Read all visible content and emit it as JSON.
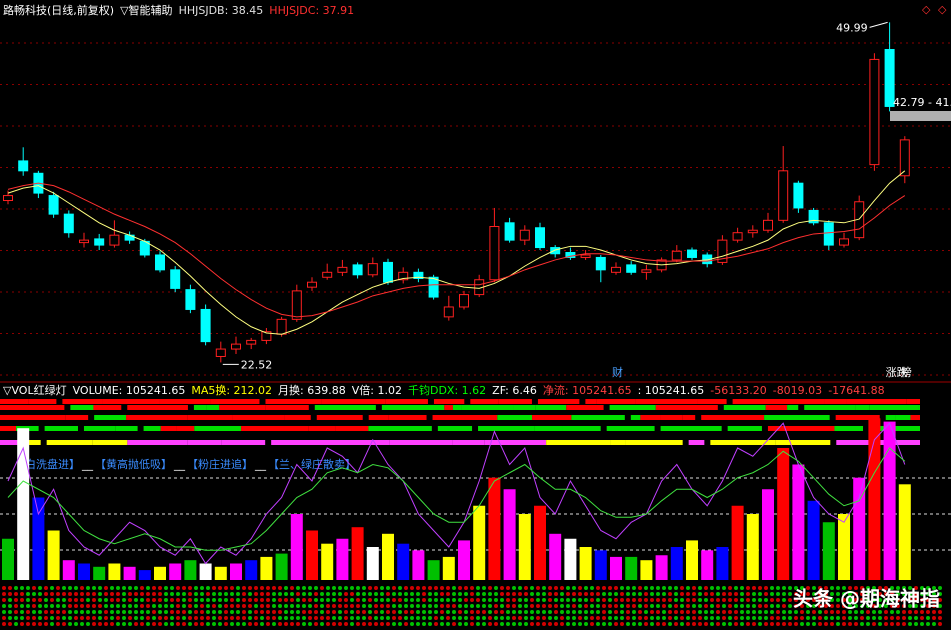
{
  "chart_data": [
    {
      "type": "candlestick",
      "header": [
        {
          "text": "路畅科技(日线,前复权)",
          "color": "#ffffff"
        },
        {
          "text": "▽智能辅助",
          "color": "#ffffff"
        },
        {
          "text": "HHJSJDB: 38.45",
          "color": "#e0e0e0"
        },
        {
          "text": "HHJSJDC: 37.91",
          "color": "#ff3030"
        }
      ],
      "ylim": [
        21.1,
        51.8
      ],
      "up_color": "#ff2020",
      "down_color": "#00ffff",
      "ohlc": [
        [
          35.6,
          36.4,
          35.3,
          36.0
        ],
        [
          38.8,
          39.9,
          37.6,
          38.0
        ],
        [
          37.8,
          38.0,
          35.8,
          36.2
        ],
        [
          36.0,
          36.3,
          34.2,
          34.5
        ],
        [
          34.5,
          34.8,
          32.6,
          33.0
        ],
        [
          32.2,
          33.0,
          31.8,
          32.4
        ],
        [
          32.5,
          32.9,
          31.6,
          32.0
        ],
        [
          32.0,
          34.0,
          31.8,
          32.8
        ],
        [
          32.8,
          33.1,
          32.1,
          32.4
        ],
        [
          32.3,
          32.5,
          31.0,
          31.2
        ],
        [
          31.2,
          31.5,
          29.8,
          30.0
        ],
        [
          30.0,
          30.3,
          28.2,
          28.5
        ],
        [
          28.4,
          28.8,
          26.5,
          26.8
        ],
        [
          26.8,
          27.2,
          23.9,
          24.2
        ],
        [
          23.0,
          24.2,
          22.52,
          23.6
        ],
        [
          23.6,
          24.6,
          23.2,
          24.0
        ],
        [
          24.0,
          24.5,
          23.6,
          24.3
        ],
        [
          24.3,
          25.3,
          24.0,
          25.0
        ],
        [
          24.8,
          26.2,
          24.6,
          26.0
        ],
        [
          26.0,
          28.8,
          25.8,
          28.3
        ],
        [
          28.6,
          29.4,
          28.3,
          29.0
        ],
        [
          29.4,
          30.5,
          29.2,
          29.8
        ],
        [
          29.8,
          30.8,
          29.5,
          30.2
        ],
        [
          30.4,
          30.6,
          29.3,
          29.6
        ],
        [
          29.6,
          31.0,
          29.4,
          30.5
        ],
        [
          30.6,
          30.9,
          28.8,
          29.0
        ],
        [
          29.2,
          30.2,
          28.9,
          29.8
        ],
        [
          29.8,
          30.1,
          29.0,
          29.3
        ],
        [
          29.4,
          29.6,
          27.6,
          27.8
        ],
        [
          26.2,
          27.9,
          25.9,
          27.0
        ],
        [
          27.0,
          28.3,
          26.8,
          28.0
        ],
        [
          28.0,
          29.6,
          27.8,
          29.2
        ],
        [
          29.2,
          35.0,
          29.0,
          33.5
        ],
        [
          33.8,
          34.2,
          32.2,
          32.4
        ],
        [
          32.4,
          33.6,
          32.0,
          33.2
        ],
        [
          33.4,
          33.8,
          31.6,
          31.8
        ],
        [
          31.8,
          32.0,
          31.0,
          31.3
        ],
        [
          31.4,
          31.8,
          30.8,
          31.0
        ],
        [
          31.0,
          31.6,
          30.8,
          31.2
        ],
        [
          31.0,
          31.2,
          29.0,
          30.0
        ],
        [
          29.8,
          30.6,
          29.6,
          30.2
        ],
        [
          30.4,
          30.7,
          29.6,
          29.8
        ],
        [
          29.8,
          30.4,
          29.2,
          30.0
        ],
        [
          30.0,
          31.0,
          29.8,
          30.8
        ],
        [
          30.8,
          32.0,
          30.6,
          31.5
        ],
        [
          31.6,
          31.8,
          30.8,
          31.0
        ],
        [
          31.2,
          31.4,
          30.2,
          30.5
        ],
        [
          30.6,
          32.8,
          30.4,
          32.4
        ],
        [
          32.4,
          33.4,
          32.2,
          33.0
        ],
        [
          33.0,
          33.6,
          32.6,
          33.2
        ],
        [
          33.2,
          34.6,
          33.0,
          34.0
        ],
        [
          34.0,
          40.0,
          33.8,
          38.0
        ],
        [
          37.0,
          37.2,
          34.6,
          35.0
        ],
        [
          34.8,
          35.0,
          33.6,
          33.8
        ],
        [
          33.8,
          34.0,
          31.6,
          32.0
        ],
        [
          32.0,
          33.0,
          31.8,
          32.5
        ],
        [
          32.6,
          36.0,
          32.4,
          35.5
        ],
        [
          38.5,
          47.5,
          38.0,
          47.0
        ],
        [
          47.8,
          49.99,
          42.8,
          43.2
        ],
        [
          37.6,
          40.8,
          37.0,
          40.5
        ]
      ],
      "series": [
        {
          "color": "#ffff80",
          "values": [
            36.2,
            36.6,
            36.8,
            36.2,
            35.4,
            34.6,
            33.8,
            33.2,
            32.8,
            32.3,
            31.6,
            30.6,
            29.5,
            28.3,
            27.2,
            26.2,
            25.4,
            24.9,
            24.8,
            25.2,
            25.8,
            26.6,
            27.4,
            28.0,
            28.6,
            29.0,
            29.3,
            29.4,
            29.3,
            28.9,
            28.6,
            28.5,
            28.9,
            29.5,
            30.3,
            31.0,
            31.6,
            31.9,
            31.9,
            31.6,
            31.2,
            30.8,
            30.5,
            30.4,
            30.5,
            30.7,
            30.8,
            31.1,
            31.5,
            31.9,
            32.4,
            33.3,
            33.8,
            34.0,
            33.9,
            33.8,
            34.1,
            35.6,
            37.0,
            38.0
          ]
        },
        {
          "color": "#ff3030",
          "values": [
            36.5,
            36.8,
            37.0,
            36.8,
            36.3,
            35.7,
            35.1,
            34.5,
            34.0,
            33.5,
            32.9,
            32.2,
            31.3,
            30.3,
            29.3,
            28.4,
            27.6,
            26.9,
            26.4,
            26.2,
            26.3,
            26.6,
            27.0,
            27.4,
            27.9,
            28.2,
            28.5,
            28.7,
            28.8,
            28.8,
            28.8,
            28.8,
            29.1,
            29.5,
            30.0,
            30.4,
            30.8,
            31.1,
            31.3,
            31.3,
            31.2,
            31.0,
            30.8,
            30.7,
            30.7,
            30.7,
            30.7,
            30.9,
            31.1,
            31.4,
            31.7,
            32.2,
            32.6,
            32.9,
            33.0,
            33.1,
            33.3,
            34.2,
            35.2,
            36.0
          ]
        }
      ],
      "high_label": "49.99",
      "low_label": "22.52",
      "range_label": "42.79 - 41.",
      "markers": [
        {
          "text": "财",
          "color": "#4aa0ff",
          "index": 40
        },
        {
          "text": "涨跌",
          "color": "#ffffff",
          "index": 58
        },
        {
          "text": "榜",
          "color": "#ffffff",
          "index": 59
        }
      ]
    },
    {
      "type": "indicator",
      "header": [
        {
          "text": "▽VOL红绿灯",
          "color": "#ffffff"
        },
        {
          "text": "VOLUME: 105241.65",
          "color": "#ffffff"
        },
        {
          "text": "MA5换: 212.02",
          "color": "#ffff00"
        },
        {
          "text": "月换: 639.88",
          "color": "#ffffff"
        },
        {
          "text": "V倍: 1.02",
          "color": "#ffffff"
        },
        {
          "text": "千钧DDX: 1.62",
          "color": "#00ff00"
        },
        {
          "text": "ZF: 6.46",
          "color": "#ffffff"
        },
        {
          "text": "净流: 105241.65",
          "color": "#ff4040"
        },
        {
          "text": ": 105241.65",
          "color": "#ffffff"
        },
        {
          "text": "-56133.20",
          "color": "#ff4040"
        },
        {
          "text": "-8019.03",
          "color": "#ff4040"
        },
        {
          "text": "-17641.88",
          "color": "#ff4040"
        }
      ],
      "notes": [
        {
          "text": "【白洗盘进】",
          "color": "#3a8cff"
        },
        {
          "text": "__",
          "color": "#ffffff"
        },
        {
          "text": "【黄高抛低吸】",
          "color": "#3a8cff"
        },
        {
          "text": "__",
          "color": "#ffffff"
        },
        {
          "text": "【粉庄进追】",
          "color": "#3a8cff"
        },
        {
          "text": "__",
          "color": "#ffffff"
        },
        {
          "text": "【兰、绿庄散卖】",
          "color": "#3a8cff"
        }
      ],
      "ylim": [
        0,
        100
      ],
      "values": [
        25,
        92,
        50,
        30,
        12,
        10,
        8,
        10,
        8,
        6,
        8,
        10,
        12,
        10,
        8,
        10,
        12,
        14,
        16,
        40,
        30,
        22,
        25,
        32,
        20,
        28,
        22,
        18,
        12,
        14,
        24,
        45,
        62,
        55,
        40,
        45,
        28,
        25,
        20,
        18,
        14,
        14,
        12,
        15,
        20,
        24,
        18,
        20,
        45,
        40,
        55,
        80,
        70,
        48,
        35,
        40,
        62,
        98,
        96,
        58
      ],
      "colors": [
        "#00c000",
        "#ffffff",
        "#0000ff",
        "#ffff00",
        "#ff00ff",
        "#0000ff",
        "#00c000",
        "#ffff00",
        "#ff00ff",
        "#0000ff",
        "#ffff00",
        "#ff00ff",
        "#00c000",
        "#ffffff",
        "#ffff00",
        "#ff00ff",
        "#0000ff",
        "#ffff00",
        "#00c000",
        "#ff00ff",
        "#ff0000",
        "#ffff00",
        "#ff00ff",
        "#ff0000",
        "#ffffff",
        "#ffff00",
        "#0000ff",
        "#ff00ff",
        "#00c000",
        "#ffff00",
        "#ff00ff",
        "#ffff00",
        "#ff0000",
        "#ff00ff",
        "#ffff00",
        "#ff0000",
        "#ff00ff",
        "#ffffff",
        "#ffff00",
        "#0000ff",
        "#ff00ff",
        "#00c000",
        "#ffff00",
        "#ff00ff",
        "#0000ff",
        "#ffff00",
        "#ff00ff",
        "#0000ff",
        "#ff0000",
        "#ffff00",
        "#ff00ff",
        "#ff0000",
        "#ff00ff",
        "#0000ff",
        "#00c000",
        "#ffff00",
        "#ff00ff",
        "#ff0000",
        "#ff00ff",
        "#ffff00"
      ],
      "series": [
        {
          "color": "#c040ff",
          "values": [
            60,
            80,
            40,
            55,
            30,
            20,
            15,
            25,
            35,
            30,
            20,
            15,
            25,
            10,
            20,
            15,
            25,
            40,
            50,
            70,
            60,
            80,
            75,
            65,
            85,
            70,
            60,
            40,
            30,
            20,
            35,
            60,
            90,
            70,
            80,
            50,
            40,
            60,
            45,
            30,
            25,
            35,
            40,
            60,
            70,
            55,
            45,
            60,
            80,
            75,
            85,
            95,
            70,
            50,
            40,
            35,
            50,
            85,
            95,
            70
          ]
        },
        {
          "color": "#40e040",
          "values": [
            50,
            60,
            55,
            50,
            40,
            30,
            25,
            22,
            25,
            28,
            25,
            20,
            20,
            18,
            18,
            20,
            22,
            30,
            40,
            50,
            55,
            65,
            68,
            65,
            70,
            68,
            60,
            50,
            40,
            35,
            35,
            45,
            60,
            65,
            70,
            62,
            55,
            55,
            50,
            42,
            38,
            38,
            40,
            48,
            55,
            55,
            50,
            55,
            62,
            65,
            70,
            78,
            72,
            62,
            52,
            45,
            48,
            65,
            80,
            72
          ]
        }
      ]
    }
  ],
  "watermark": "头条 @期海神指"
}
